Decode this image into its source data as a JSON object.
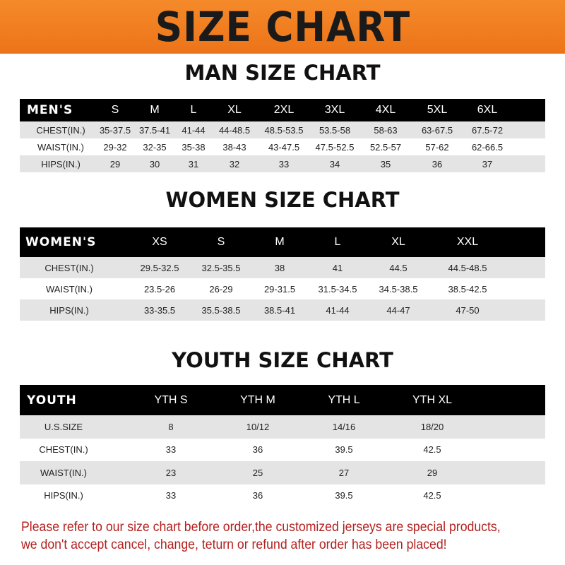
{
  "banner": {
    "title": "SIZE CHART"
  },
  "men": {
    "title": "MAN SIZE CHART",
    "header": [
      "MEN'S",
      "S",
      "M",
      "L",
      "XL",
      "2XL",
      "3XL",
      "4XL",
      "5XL",
      "6XL"
    ],
    "rows": [
      [
        "CHEST(IN.)",
        "35-37.5",
        "37.5-41",
        "41-44",
        "44-48.5",
        "48.5-53.5",
        "53.5-58",
        "58-63",
        "63-67.5",
        "67.5-72"
      ],
      [
        "WAIST(IN.)",
        "29-32",
        "32-35",
        "35-38",
        "38-43",
        "43-47.5",
        "47.5-52.5",
        "52.5-57",
        "57-62",
        "62-66.5"
      ],
      [
        "HIPS(IN.)",
        "29",
        "30",
        "31",
        "32",
        "33",
        "34",
        "35",
        "36",
        "37"
      ]
    ]
  },
  "women": {
    "title": "WOMEN SIZE CHART",
    "header": [
      "WOMEN'S",
      "XS",
      "S",
      "M",
      "L",
      "XL",
      "XXL"
    ],
    "rows": [
      [
        "CHEST(IN.)",
        "29.5-32.5",
        "32.5-35.5",
        "38",
        "41",
        "44.5",
        "44.5-48.5"
      ],
      [
        "WAIST(IN.)",
        "23.5-26",
        "26-29",
        "29-31.5",
        "31.5-34.5",
        "34.5-38.5",
        "38.5-42.5"
      ],
      [
        "HIPS(IN.)",
        "33-35.5",
        "35.5-38.5",
        "38.5-41",
        "41-44",
        "44-47",
        "47-50"
      ]
    ]
  },
  "youth": {
    "title": "YOUTH SIZE CHART",
    "header": [
      "YOUTH",
      "YTH S",
      "YTH M",
      "YTH L",
      "YTH XL"
    ],
    "rows": [
      [
        "U.S.SIZE",
        "8",
        "10/12",
        "14/16",
        "18/20"
      ],
      [
        "CHEST(IN.)",
        "33",
        "36",
        "39.5",
        "42.5"
      ],
      [
        "WAIST(IN.)",
        "23",
        "25",
        "27",
        "29"
      ],
      [
        "HIPS(IN.)",
        "33",
        "36",
        "39.5",
        "42.5"
      ]
    ]
  },
  "note": {
    "line1": "Please refer to our size chart before order,the customized jerseys are special products,",
    "line2": "we don't accept cancel, change, teturn or refund after order has been placed!"
  },
  "colors": {
    "banner": "#ef7c1c",
    "header_bg": "#000000",
    "row_grey": "#e4e4e4",
    "note": "#b3201e"
  }
}
